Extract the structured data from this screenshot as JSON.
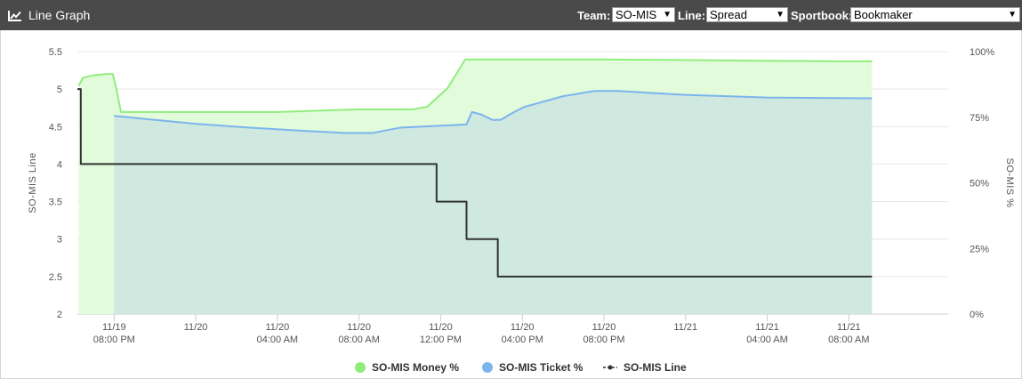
{
  "header": {
    "title": "Line Graph",
    "team_label": "Team:",
    "team_value": "SO-MIS",
    "line_label": "Line:",
    "line_value": "Spread",
    "sportbook_label": "Sportbook:",
    "sportbook_value": "Bookmaker"
  },
  "colors": {
    "header_bg": "#4a4a4a",
    "money": "#90ed7d",
    "money_fill": "#e2fbdb",
    "ticket": "#7cb5ec",
    "ticket_fill": "#cfe8e0",
    "line": "#333333"
  },
  "chart_data": {
    "type": "line",
    "title": "",
    "ylabel_left": "SO-MIS Line",
    "ylabel_right": "SO-MIS %",
    "y_left_range": [
      2,
      5.5
    ],
    "y_left_ticks": [
      "2",
      "2.5",
      "3",
      "3.5",
      "4",
      "4.5",
      "5",
      "5.5"
    ],
    "y_right_range": [
      0,
      100
    ],
    "y_right_ticks": [
      "0%",
      "25%",
      "50%",
      "75%",
      "100%"
    ],
    "x_unit": "hours since 11/19 12:00 PM",
    "x_range": [
      5.3,
      69.3
    ],
    "x_ticks": [
      {
        "x": 8,
        "line1": "11/19",
        "line2": "08:00 PM"
      },
      {
        "x": 14,
        "line1": "11/20",
        "line2": ""
      },
      {
        "x": 20,
        "line1": "11/20",
        "line2": "04:00 AM"
      },
      {
        "x": 26,
        "line1": "11/20",
        "line2": "08:00 AM"
      },
      {
        "x": 32,
        "line1": "11/20",
        "line2": "12:00 PM"
      },
      {
        "x": 38,
        "line1": "11/20",
        "line2": "04:00 PM"
      },
      {
        "x": 44,
        "line1": "11/20",
        "line2": "08:00 PM"
      },
      {
        "x": 50,
        "line1": "11/21",
        "line2": ""
      },
      {
        "x": 56,
        "line1": "11/21",
        "line2": "04:00 AM"
      },
      {
        "x": 62,
        "line1": "11/21",
        "line2": "08:00 AM"
      }
    ],
    "legend_position": "bottom-center",
    "grid": true,
    "series": [
      {
        "name": "SO-MIS Money %",
        "axis": "right",
        "area": true,
        "x": [
          5.4,
          5.7,
          6.5,
          7.5,
          7.9,
          8.2,
          8.5,
          14,
          20,
          26,
          30,
          31,
          32.5,
          33.8,
          36,
          44,
          50,
          56,
          61,
          63.7
        ],
        "y": [
          87,
          90,
          91,
          91.5,
          91.5,
          85,
          77,
          77,
          77,
          78,
          78,
          79,
          86,
          97,
          97,
          97,
          96.8,
          96.5,
          96.3,
          96.3
        ]
      },
      {
        "name": "SO-MIS Ticket %",
        "axis": "right",
        "area": true,
        "x": [
          8.0,
          11,
          14,
          18,
          22,
          25,
          27,
          29,
          33,
          33.9,
          34.3,
          35,
          35.8,
          36.4,
          37.4,
          38.2,
          41,
          43.3,
          45,
          50,
          56,
          63.7
        ],
        "y": [
          75.5,
          74,
          72.5,
          71,
          69.8,
          69,
          69,
          71,
          72,
          72.3,
          77,
          76,
          74,
          74,
          77,
          79,
          83,
          85,
          85,
          83.5,
          82.5,
          82.2
        ]
      },
      {
        "name": "SO-MIS Line",
        "axis": "left",
        "step": true,
        "x": [
          5.3,
          5.55,
          31.7,
          33.9,
          36.2,
          63.7
        ],
        "y": [
          5,
          4,
          3.5,
          3,
          2.5,
          2.5
        ]
      }
    ]
  }
}
